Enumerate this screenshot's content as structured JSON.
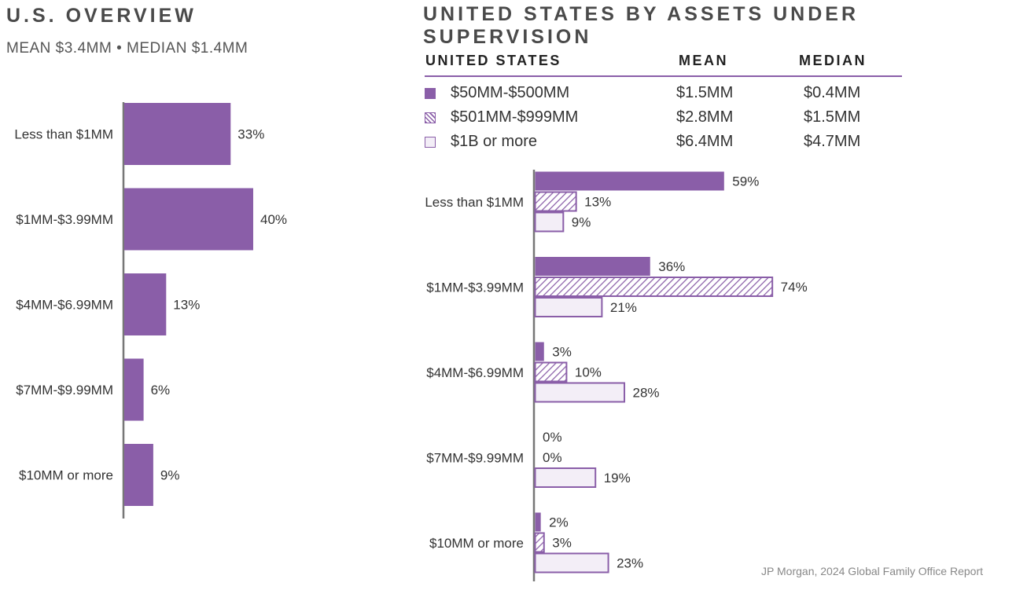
{
  "left_title": "U.S. OVERVIEW",
  "left_subtitle": "MEAN $3.4MM • MEDIAN $1.4MM",
  "right_title": "UNITED STATES BY ASSETS UNDER SUPERVISION",
  "legend": {
    "headers": {
      "label": "UNITED STATES",
      "mean": "MEAN",
      "median": "MEDIAN"
    },
    "rows": [
      {
        "label": "$50MM-$500MM",
        "mean": "$1.5MM",
        "median": "$0.4MM",
        "style": "solid"
      },
      {
        "label": "$501MM-$999MM",
        "mean": "$2.8MM",
        "median": "$1.5MM",
        "style": "hatch"
      },
      {
        "label": "$1B or more",
        "mean": "$6.4MM",
        "median": "$4.7MM",
        "style": "light"
      }
    ]
  },
  "source": "JP Morgan, 2024 Global Family Office Report",
  "colors": {
    "primary": "#8a5ea8",
    "light_fill": "#f3eef7",
    "axis": "#777777"
  },
  "chart_data": [
    {
      "type": "bar",
      "orientation": "horizontal",
      "title": "U.S. OVERVIEW",
      "subtitle": "MEAN $3.4MM • MEDIAN $1.4MM",
      "categories": [
        "Less than $1MM",
        "$1MM-$3.99MM",
        "$4MM-$6.99MM",
        "$7MM-$9.99MM",
        "$10MM or more"
      ],
      "values": [
        33,
        40,
        13,
        6,
        9
      ],
      "value_labels": [
        "33%",
        "40%",
        "13%",
        "6%",
        "9%"
      ],
      "unit": "%"
    },
    {
      "type": "bar",
      "orientation": "horizontal",
      "title": "UNITED STATES BY ASSETS UNDER SUPERVISION",
      "categories": [
        "Less than $1MM",
        "$1MM-$3.99MM",
        "$4MM-$6.99MM",
        "$7MM-$9.99MM",
        "$10MM or more"
      ],
      "series": [
        {
          "name": "$50MM-$500MM",
          "style": "solid",
          "values": [
            59,
            36,
            3,
            0,
            2
          ],
          "labels": [
            "59%",
            "36%",
            "3%",
            "0%",
            "2%"
          ]
        },
        {
          "name": "$501MM-$999MM",
          "style": "hatch",
          "values": [
            13,
            74,
            10,
            0,
            3
          ],
          "labels": [
            "13%",
            "74%",
            "10%",
            "0%",
            "3%"
          ]
        },
        {
          "name": "$1B or more",
          "style": "light",
          "values": [
            9,
            21,
            28,
            19,
            23
          ],
          "labels": [
            "9%",
            "21%",
            "28%",
            "19%",
            "23%"
          ]
        }
      ],
      "unit": "%",
      "legend": "top"
    }
  ]
}
